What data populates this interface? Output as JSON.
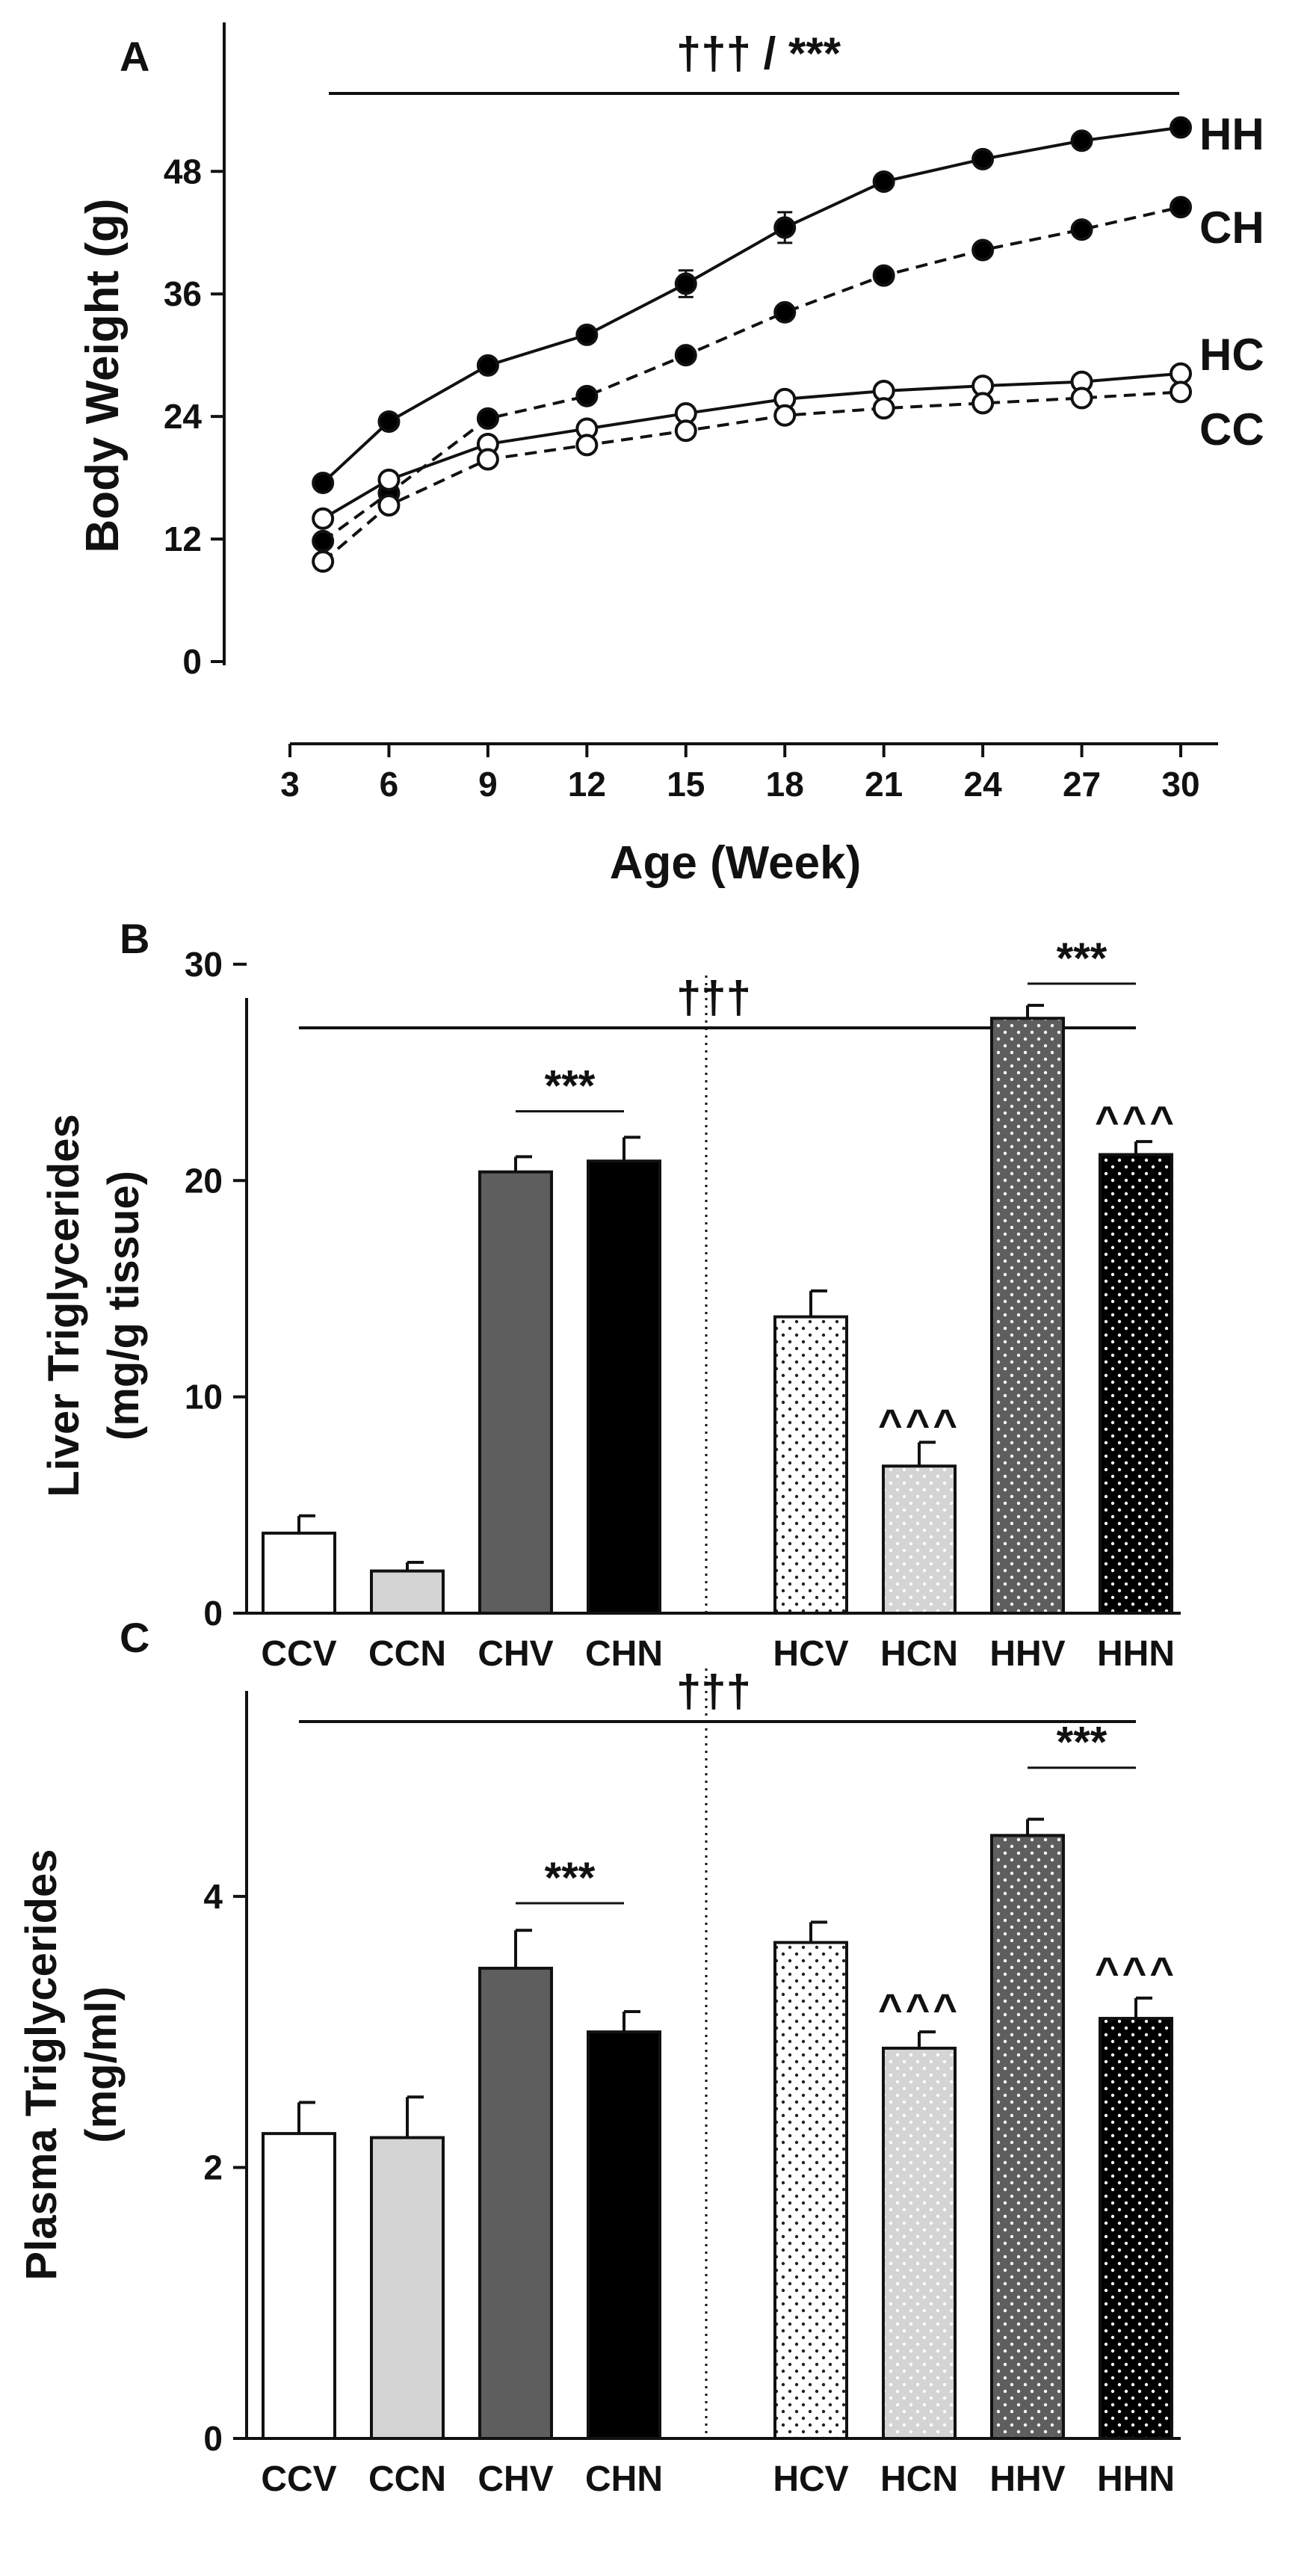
{
  "chart_data": [
    {
      "panel": "A",
      "type": "line",
      "title": "",
      "xlabel": "Age (Week)",
      "ylabel": "Body Weight (g)",
      "xlim": [
        3,
        30
      ],
      "ylim": [
        0,
        56
      ],
      "x_ticks": [
        3,
        6,
        9,
        12,
        15,
        18,
        21,
        24,
        27,
        30
      ],
      "y_ticks": [
        0,
        12,
        24,
        36,
        48
      ],
      "significance": "††† / ***",
      "x": [
        4,
        6,
        9,
        12,
        15,
        18,
        21,
        24,
        27,
        30
      ],
      "series": [
        {
          "name": "HH",
          "marker": "filled",
          "line": "solid",
          "values": [
            17.5,
            23.5,
            29,
            32,
            37,
            42.5,
            47,
            49.2,
            51,
            52.3
          ],
          "errors": [
            0.3,
            0.4,
            0.5,
            0.5,
            1.3,
            1.5,
            0.5,
            0.4,
            0.4,
            0.4
          ]
        },
        {
          "name": "CH",
          "marker": "filled",
          "line": "dashed",
          "values": [
            11.8,
            16.5,
            23.8,
            26,
            30,
            34.2,
            37.8,
            40.3,
            42.3,
            44.5
          ],
          "errors": [
            0.3,
            0.3,
            0.4,
            0.4,
            0.5,
            0.5,
            0.5,
            0.5,
            0.5,
            0.5
          ]
        },
        {
          "name": "HC",
          "marker": "open",
          "line": "solid",
          "values": [
            14,
            17.8,
            21.3,
            22.8,
            24.3,
            25.7,
            26.5,
            27,
            27.4,
            28.2
          ],
          "errors": [
            0.3,
            0.3,
            0.3,
            0.3,
            0.3,
            0.3,
            0.3,
            0.3,
            0.3,
            0.3
          ]
        },
        {
          "name": "CC",
          "marker": "open",
          "line": "dashed",
          "values": [
            9.8,
            15.3,
            19.8,
            21.2,
            22.6,
            24.1,
            24.8,
            25.3,
            25.8,
            26.4
          ],
          "errors": [
            0.3,
            0.3,
            0.3,
            0.3,
            0.3,
            0.3,
            0.3,
            0.3,
            0.3,
            0.3
          ]
        }
      ]
    },
    {
      "panel": "B",
      "type": "bar",
      "title": "",
      "xlabel": "",
      "ylabel_lines": [
        "Liver Triglycerides",
        "(mg/g tissue)"
      ],
      "ylim": [
        0,
        32
      ],
      "y_ticks": [
        0,
        10,
        20,
        30
      ],
      "significance": "†††",
      "categories": [
        "CCV",
        "CCN",
        "CHV",
        "CHN",
        "HCV",
        "HCN",
        "HHV",
        "HHN"
      ],
      "values": [
        3.7,
        1.95,
        20.4,
        20.9,
        13.7,
        6.8,
        27.5,
        21.2
      ],
      "errors": [
        0.8,
        0.4,
        0.7,
        1.1,
        1.2,
        1.1,
        0.6,
        0.6
      ],
      "fills": [
        "white",
        "light",
        "dark",
        "black",
        "white-dotted",
        "light-dotted",
        "dark-dotted",
        "black-dotted"
      ],
      "annotations": [
        {
          "text": "***",
          "from": 2,
          "to": 3,
          "y": 23.2
        },
        {
          "text": "***",
          "from": 6,
          "to": 7,
          "y": 29.1
        },
        {
          "text": "^^^",
          "over": 5,
          "y": 8.3
        },
        {
          "text": "^^^",
          "over": 7,
          "y": 22.3
        }
      ]
    },
    {
      "panel": "C",
      "type": "bar",
      "title": "",
      "xlabel": "",
      "ylabel_lines": [
        "Plasma Triglycerides",
        "(mg/ml)"
      ],
      "ylim": [
        0,
        5.5
      ],
      "y_ticks": [
        0,
        2,
        4
      ],
      "significance": "†††",
      "categories": [
        "CCV",
        "CCN",
        "CHV",
        "CHN",
        "HCV",
        "HCN",
        "HHV",
        "HHN"
      ],
      "values": [
        2.25,
        2.22,
        3.47,
        3.0,
        3.66,
        2.88,
        4.45,
        3.1
      ],
      "errors": [
        0.23,
        0.3,
        0.28,
        0.15,
        0.15,
        0.12,
        0.12,
        0.15
      ],
      "fills": [
        "white",
        "light",
        "dark",
        "black",
        "white-dotted",
        "light-dotted",
        "dark-dotted",
        "black-dotted"
      ],
      "annotations": [
        {
          "text": "***",
          "from": 2,
          "to": 3,
          "y": 3.95
        },
        {
          "text": "***",
          "from": 6,
          "to": 7,
          "y": 4.95
        },
        {
          "text": "^^^",
          "over": 5,
          "y": 3.1
        },
        {
          "text": "^^^",
          "over": 7,
          "y": 3.37
        }
      ]
    }
  ]
}
